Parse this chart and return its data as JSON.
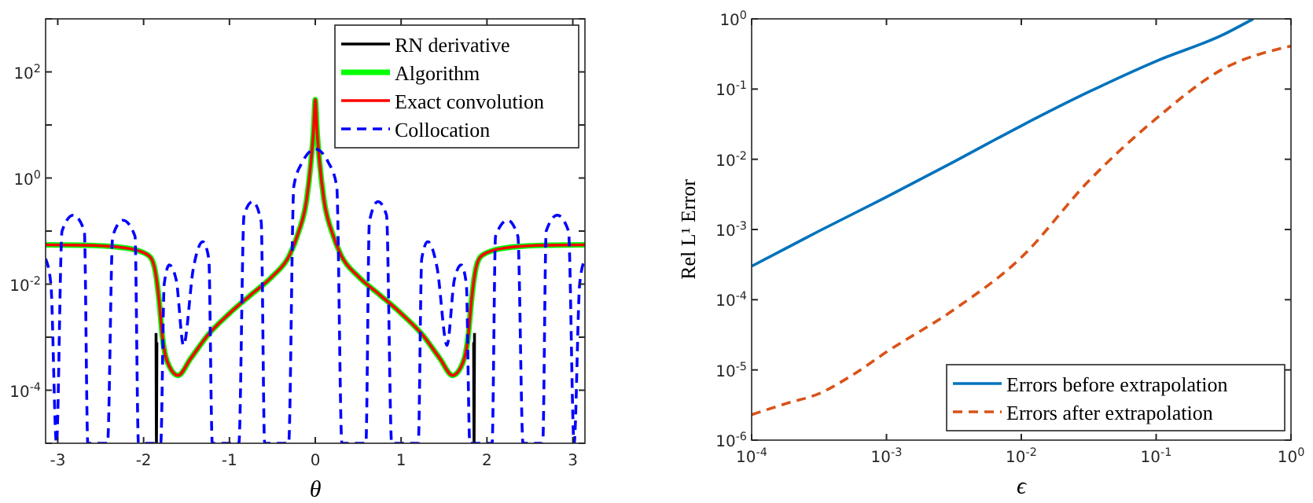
{
  "chart_data": [
    {
      "type": "line",
      "xlabel": "θ",
      "log": "y",
      "grid": false,
      "legend": "top right",
      "marker": "none",
      "xlim": [
        -3.1416,
        3.1416
      ],
      "xticks": [
        -3,
        -2,
        -1,
        0,
        1,
        2,
        3
      ],
      "ylim": [
        1e-05,
        1000
      ],
      "yticks": [
        {
          "value": 1e-05,
          "label": null
        },
        {
          "value": 0.0001,
          "label": "10$^{-4}$"
        },
        {
          "value": 0.001,
          "label": null
        },
        {
          "value": 0.01,
          "label": "10$^{-2}$"
        },
        {
          "value": 0.1,
          "label": null
        },
        {
          "value": 1,
          "label": "10$^{0}$"
        },
        {
          "value": 10,
          "label": null
        },
        {
          "value": 100,
          "label": "10$^{2}$"
        },
        {
          "value": 1000,
          "label": null
        }
      ],
      "series": [
        {
          "name": "RN derivative",
          "color": "#000000",
          "line_style": "solid",
          "x": [
            -1.855,
            -1.85,
            -1.845,
            0,
            1.845,
            1.85,
            1.855
          ],
          "values": [
            0.0012,
            1e-05,
            0.0008,
            null,
            0.0008,
            1e-05,
            0.0012
          ]
        },
        {
          "name": "Algorithm",
          "color": "#00ff00",
          "line_style": "solid",
          "x": [
            -3.1416,
            -2.7,
            -2.3,
            -2.05,
            -1.92,
            -1.86,
            -1.82,
            -1.78,
            -1.7,
            -1.6,
            -1.45,
            -1.25,
            -1.0,
            -0.75,
            -0.5,
            -0.3,
            -0.2,
            -0.1,
            -0.05,
            -0.02,
            0,
            0.02,
            0.05,
            0.1,
            0.2,
            0.3,
            0.5,
            0.75,
            1.0,
            1.25,
            1.45,
            1.6,
            1.7,
            1.78,
            1.82,
            1.86,
            1.92,
            2.05,
            2.3,
            2.7,
            3.1416
          ],
          "values": [
            0.055,
            0.054,
            0.05,
            0.042,
            0.032,
            0.016,
            0.005,
            0.001,
            0.00028,
            0.00019,
            0.0004,
            0.0011,
            0.0028,
            0.0063,
            0.014,
            0.035,
            0.09,
            0.4,
            2,
            8,
            30,
            8,
            2,
            0.4,
            0.09,
            0.035,
            0.014,
            0.0063,
            0.0028,
            0.0011,
            0.0004,
            0.00019,
            0.00028,
            0.001,
            0.005,
            0.016,
            0.032,
            0.042,
            0.05,
            0.054,
            0.055
          ]
        },
        {
          "name": "Exact convolution",
          "color": "#ff0000",
          "line_style": "solid",
          "x": [
            -3.1416,
            -2.7,
            -2.3,
            -2.05,
            -1.92,
            -1.86,
            -1.82,
            -1.78,
            -1.7,
            -1.6,
            -1.45,
            -1.25,
            -1.0,
            -0.75,
            -0.5,
            -0.3,
            -0.2,
            -0.1,
            -0.05,
            -0.02,
            0,
            0.02,
            0.05,
            0.1,
            0.2,
            0.3,
            0.5,
            0.75,
            1.0,
            1.25,
            1.45,
            1.6,
            1.7,
            1.78,
            1.82,
            1.86,
            1.92,
            2.05,
            2.3,
            2.7,
            3.1416
          ],
          "values": [
            0.055,
            0.054,
            0.05,
            0.042,
            0.032,
            0.016,
            0.005,
            0.001,
            0.00028,
            0.00019,
            0.0004,
            0.0011,
            0.0028,
            0.0063,
            0.014,
            0.035,
            0.09,
            0.4,
            2,
            8,
            30,
            8,
            2,
            0.4,
            0.09,
            0.035,
            0.014,
            0.0063,
            0.0028,
            0.0011,
            0.0004,
            0.00019,
            0.00028,
            0.001,
            0.005,
            0.016,
            0.032,
            0.042,
            0.05,
            0.054,
            0.055
          ]
        },
        {
          "name": "Collocation",
          "color": "#0000ff",
          "line_style": "dashed",
          "x": [
            -3.1416,
            -3.08,
            -3.015,
            -2.95,
            -2.82,
            -2.69,
            -2.65,
            -2.42,
            -2.36,
            -2.24,
            -2.1,
            -2.06,
            -1.8,
            -1.76,
            -1.7,
            -1.62,
            -1.535,
            -1.42,
            -1.31,
            -1.24,
            -1.2,
            -0.89,
            -0.83,
            -0.73,
            -0.63,
            -0.59,
            -0.31,
            -0.25,
            -0.15,
            0,
            0.15,
            0.25,
            0.31,
            0.59,
            0.63,
            0.73,
            0.83,
            0.89,
            1.2,
            1.24,
            1.31,
            1.42,
            1.535,
            1.62,
            1.7,
            1.76,
            1.8,
            2.06,
            2.1,
            2.24,
            2.36,
            2.42,
            2.65,
            2.69,
            2.82,
            2.95,
            3.015,
            3.08,
            3.1416
          ],
          "values": [
            0.03,
            0.01,
            1e-05,
            0.1,
            0.2,
            0.1,
            1e-05,
            1e-05,
            0.08,
            0.16,
            0.08,
            1e-05,
            1e-05,
            0.01,
            0.023,
            0.012,
            0.0007,
            0.02,
            0.063,
            0.03,
            1e-05,
            1e-05,
            0.2,
            0.36,
            0.15,
            1e-05,
            1e-05,
            0.7,
            2,
            3.5,
            2,
            0.7,
            1e-05,
            1e-05,
            0.15,
            0.36,
            0.2,
            1e-05,
            1e-05,
            0.03,
            0.063,
            0.02,
            0.0007,
            0.012,
            0.023,
            0.01,
            1e-05,
            1e-05,
            0.08,
            0.16,
            0.08,
            1e-05,
            1e-05,
            0.1,
            0.2,
            0.1,
            1e-05,
            0.01,
            0.03
          ]
        }
      ]
    },
    {
      "type": "line",
      "xlabel": "ϵ",
      "ylabel": "Rel L¹ Error",
      "log": "xy",
      "grid": false,
      "legend": "bottom right",
      "marker": "none",
      "xlim": [
        0.0001,
        1
      ],
      "xticks": [
        {
          "value": 0.0001,
          "label": "10$^{-4}$"
        },
        {
          "value": 0.001,
          "label": "10$^{-3}$"
        },
        {
          "value": 0.01,
          "label": "10$^{-2}$"
        },
        {
          "value": 0.1,
          "label": "10$^{-1}$"
        },
        {
          "value": 1,
          "label": "10$^{0}$"
        }
      ],
      "ylim": [
        1e-06,
        1
      ],
      "yticks": [
        {
          "value": 1e-06,
          "label": "10$^{-6}$"
        },
        {
          "value": 1e-05,
          "label": "10$^{-5}$"
        },
        {
          "value": 0.0001,
          "label": "10$^{-4}$"
        },
        {
          "value": 0.001,
          "label": "10$^{-3}$"
        },
        {
          "value": 0.01,
          "label": "10$^{-2}$"
        },
        {
          "value": 0.1,
          "label": "10$^{-1}$"
        },
        {
          "value": 1,
          "label": "10$^{0}$"
        }
      ],
      "series": [
        {
          "name": "Errors before extrapolation",
          "color": "#0072bd",
          "line_style": "solid",
          "x": [
            0.0001,
            0.000316,
            0.001,
            0.00316,
            0.01,
            0.0316,
            0.1,
            0.316,
            0.525
          ],
          "values": [
            0.0003,
            0.00095,
            0.0029,
            0.0092,
            0.03,
            0.091,
            0.25,
            0.6,
            1
          ]
        },
        {
          "name": "Errors after extrapolation",
          "color": "#d95319",
          "line_style": "dashed",
          "x": [
            0.0001,
            0.000178,
            0.000316,
            0.000562,
            0.001,
            0.00316,
            0.01,
            0.0316,
            0.1,
            0.316,
            1
          ],
          "values": [
            2.3e-06,
            3.3e-06,
            4.6e-06,
            8.5e-06,
            1.8e-05,
            7.2e-05,
            0.0004,
            0.0049,
            0.038,
            0.195,
            0.41
          ]
        }
      ]
    }
  ]
}
